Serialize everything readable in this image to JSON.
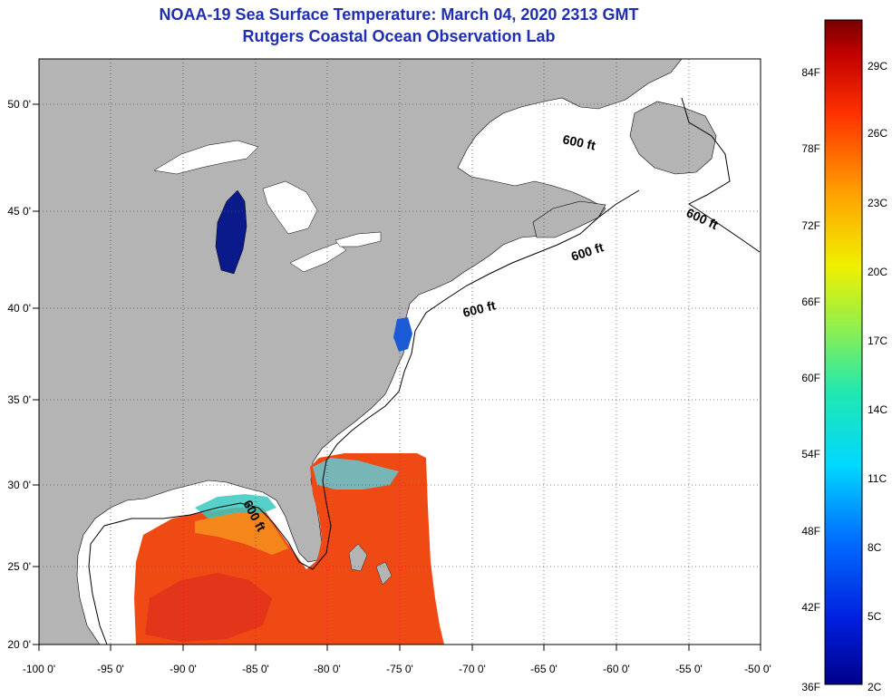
{
  "header": {
    "title_line1": "NOAA-19 Sea Surface Temperature:  March 04, 2020 2313 GMT",
    "title_line2": "Rutgers Coastal Ocean Observation Lab"
  },
  "axes": {
    "lon_labels": [
      "-100 0'",
      "-95 0'",
      "-90 0'",
      "-85 0'",
      "-80 0'",
      "-75 0'",
      "-70 0'",
      "-65 0'",
      "-60 0'",
      "-55 0'",
      "-50 0'"
    ],
    "lat_labels": [
      "50 0'",
      "45 0'",
      "40 0'",
      "35 0'",
      "30 0'",
      "25 0'",
      "20 0'"
    ]
  },
  "contours": {
    "label": "600 ft",
    "labels": [
      "600 ft",
      "600 ft",
      "600 ft",
      "600 ft",
      "600 ft"
    ]
  },
  "colorbar": {
    "fahrenheit_labels": [
      "84F",
      "78F",
      "72F",
      "66F",
      "60F",
      "54F",
      "48F",
      "42F",
      "36F"
    ],
    "celsius_labels": [
      "29C",
      "26C",
      "23C",
      "20C",
      "17C",
      "14C",
      "11C",
      "8C",
      "5C",
      "2C"
    ]
  },
  "colors": {
    "land": "#b4b4b4",
    "water_no_data": "#ffffff",
    "title": "#1f2fb0",
    "warm_sst": "#f03a10",
    "cold_lake": "#0a1a8a"
  }
}
